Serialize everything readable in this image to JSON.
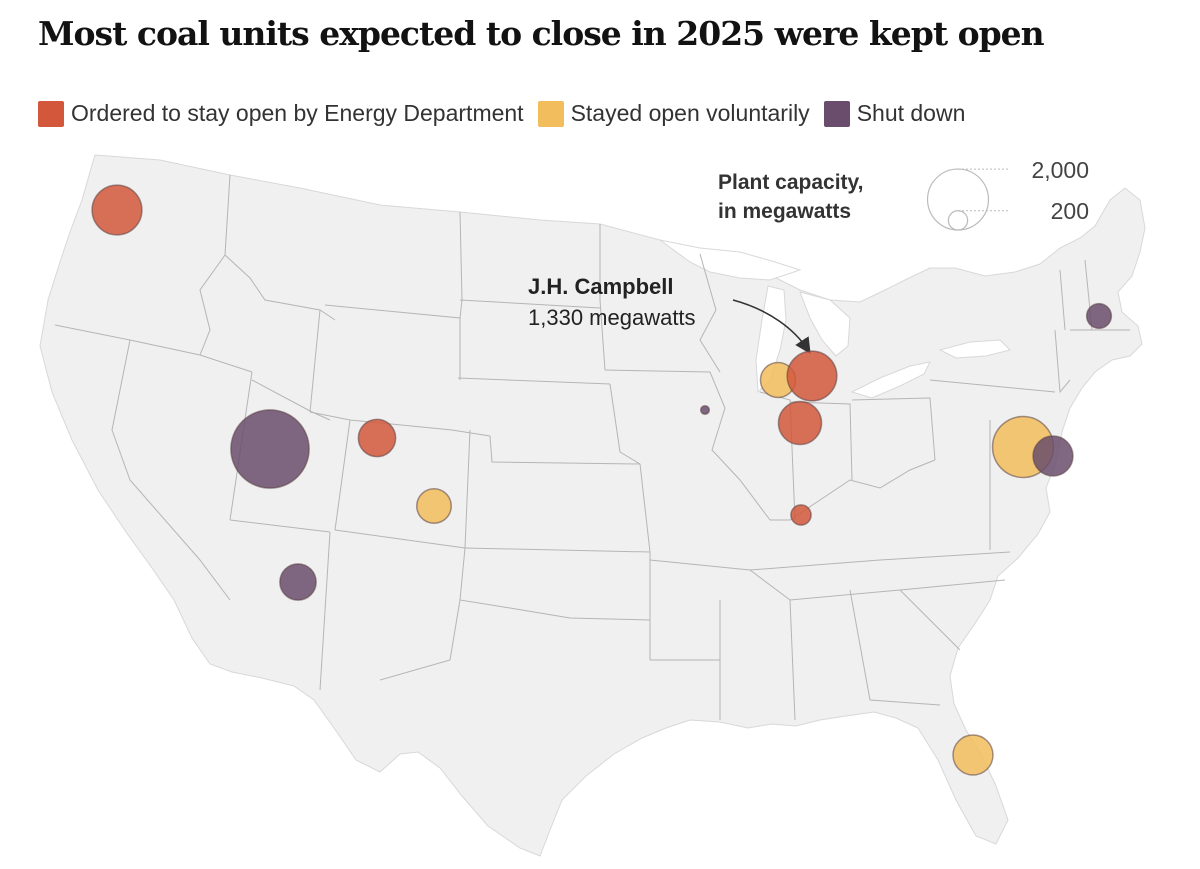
{
  "title": "Most coal units expected to close in 2025 were kept open",
  "legend": [
    {
      "label": "Ordered to stay open by Energy Department",
      "color": "#d2573b"
    },
    {
      "label": "Stayed open voluntarily",
      "color": "#f2bd5c"
    },
    {
      "label": "Shut down",
      "color": "#6a4d6c"
    }
  ],
  "size_legend": {
    "title_line1": "Plant capacity,",
    "title_line2": "in megawatts",
    "large_label": "2,000",
    "small_label": "200"
  },
  "annotation": {
    "name": "J.H. Campbell",
    "detail": "1,330 megawatts"
  },
  "chart_data": {
    "type": "bubble-map",
    "region": "Contiguous United States",
    "categories": [
      "ordered",
      "voluntary",
      "shutdown"
    ],
    "plants": [
      {
        "id": "washington",
        "category": "ordered",
        "mw": 1340
      },
      {
        "id": "jh-campbell",
        "category": "ordered",
        "mw": 1330
      },
      {
        "id": "michigan-west",
        "category": "voluntary",
        "mw": 660
      },
      {
        "id": "indiana-north",
        "category": "ordered",
        "mw": 1000
      },
      {
        "id": "indiana-south",
        "category": "ordered",
        "mw": 220
      },
      {
        "id": "colorado-north",
        "category": "ordered",
        "mw": 750
      },
      {
        "id": "colorado-south",
        "category": "voluntary",
        "mw": 640
      },
      {
        "id": "utah",
        "category": "shutdown",
        "mw": 3300
      },
      {
        "id": "arizona",
        "category": "shutdown",
        "mw": 710
      },
      {
        "id": "iowa",
        "category": "shutdown",
        "mw": 40
      },
      {
        "id": "maryland",
        "category": "voluntary",
        "mw": 2000
      },
      {
        "id": "delaware",
        "category": "shutdown",
        "mw": 860
      },
      {
        "id": "new-hampshire",
        "category": "shutdown",
        "mw": 330
      },
      {
        "id": "florida",
        "category": "voluntary",
        "mw": 860
      }
    ]
  }
}
